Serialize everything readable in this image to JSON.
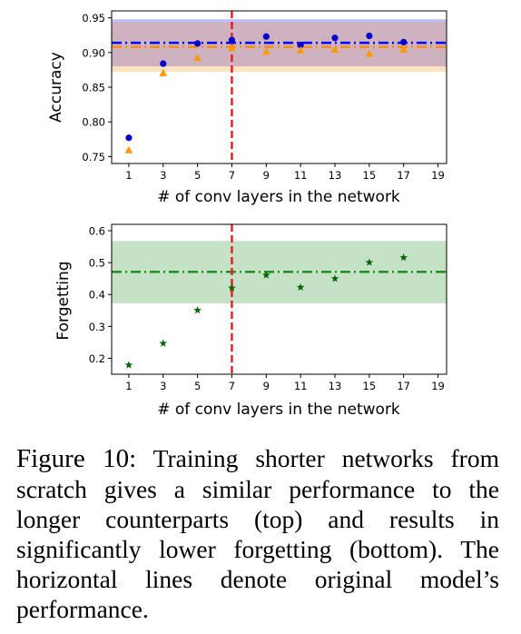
{
  "chart_data": [
    {
      "type": "scatter",
      "ylabel": "Accuracy",
      "xlabel": "# of conv layers in the network",
      "xlim": [
        0,
        19.5
      ],
      "ylim": [
        0.74,
        0.96
      ],
      "xticks": [
        1,
        3,
        5,
        7,
        9,
        11,
        13,
        15,
        17,
        19
      ],
      "yticks": [
        0.75,
        0.8,
        0.85,
        0.9,
        0.95
      ],
      "ytick_labels": [
        "0.75",
        "0.80",
        "0.85",
        "0.90",
        "0.95"
      ],
      "series": [
        {
          "color": "#0000cc",
          "marker": "circle",
          "x": [
            1,
            3,
            5,
            7,
            9,
            11,
            13,
            15,
            17
          ],
          "y": [
            0.777,
            0.884,
            0.913,
            0.918,
            0.923,
            0.911,
            0.921,
            0.924,
            0.915
          ]
        },
        {
          "color": "#ff9900",
          "marker": "triangle",
          "x": [
            1,
            3,
            5,
            7,
            9,
            11,
            13,
            15,
            17
          ],
          "y": [
            0.759,
            0.87,
            0.892,
            0.906,
            0.901,
            0.903,
            0.904,
            0.898,
            0.904
          ]
        }
      ],
      "reference_lines": [
        {
          "y": 0.914,
          "color": "#0000ff",
          "style": "dash-dot",
          "band": [
            0.88,
            0.948
          ]
        },
        {
          "y": 0.908,
          "color": "#ff8c00",
          "style": "dash-dot",
          "band": [
            0.872,
            0.944
          ]
        }
      ],
      "vertical_line": {
        "x": 7,
        "color": "#e8191c",
        "style": "dashed"
      }
    },
    {
      "type": "scatter",
      "ylabel": "Forgetting",
      "xlabel": "# of conv layers in the network",
      "xlim": [
        0,
        19.5
      ],
      "ylim": [
        0.15,
        0.62
      ],
      "xticks": [
        1,
        3,
        5,
        7,
        9,
        11,
        13,
        15,
        17,
        19
      ],
      "yticks": [
        0.2,
        0.3,
        0.4,
        0.5,
        0.6
      ],
      "ytick_labels": [
        "0.2",
        "0.3",
        "0.4",
        "0.5",
        "0.6"
      ],
      "series": [
        {
          "color": "#006400",
          "marker": "star",
          "x": [
            1,
            3,
            5,
            7,
            9,
            11,
            13,
            15,
            17
          ],
          "y": [
            0.18,
            0.248,
            0.352,
            0.422,
            0.462,
            0.424,
            0.451,
            0.502,
            0.517
          ]
        }
      ],
      "reference_lines": [
        {
          "y": 0.471,
          "color": "#1a8a1a",
          "style": "dash-dot",
          "band": [
            0.372,
            0.568
          ]
        }
      ],
      "vertical_line": {
        "x": 7,
        "color": "#e8191c",
        "style": "dashed"
      }
    }
  ],
  "caption": {
    "label": "Figure 10:",
    "text": "Training shorter networks from scratch gives a similar performance to the longer counterparts (top) and results in significantly lower forgetting (bottom). The horizontal lines denote original model’s performance."
  }
}
